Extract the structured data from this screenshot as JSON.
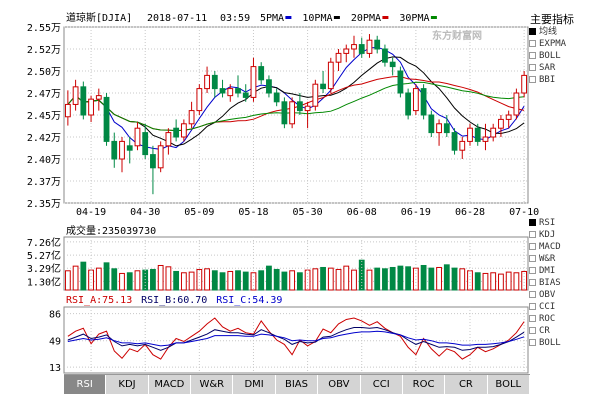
{
  "header": {
    "index_name": "道琼斯[DJIA]",
    "date": "2018-07-11",
    "time": "03:59",
    "ma_legend": [
      {
        "label": "5PMA",
        "color": "#0000cc"
      },
      {
        "label": "10PMA",
        "color": "#000000"
      },
      {
        "label": "20PMA",
        "color": "#cc0000"
      },
      {
        "label": "30PMA",
        "color": "#008800"
      }
    ]
  },
  "watermark": "东方财富网",
  "indicators_panel": {
    "title": "主要指标",
    "items": [
      {
        "label": "均线",
        "selected": true
      },
      {
        "label": "EXPMA",
        "selected": false
      },
      {
        "label": "BOLL",
        "selected": false
      },
      {
        "label": "SAR",
        "selected": false
      },
      {
        "label": "BBI",
        "selected": false
      }
    ]
  },
  "sub_indicators": {
    "items": [
      {
        "label": "RSI",
        "selected": true
      },
      {
        "label": "KDJ",
        "selected": false
      },
      {
        "label": "MACD",
        "selected": false
      },
      {
        "label": "W&R",
        "selected": false
      },
      {
        "label": "DMI",
        "selected": false
      },
      {
        "label": "BIAS",
        "selected": false
      },
      {
        "label": "OBV",
        "selected": false
      },
      {
        "label": "CCI",
        "selected": false
      },
      {
        "label": "ROC",
        "selected": false
      },
      {
        "label": "CR",
        "selected": false
      },
      {
        "label": "BOLL",
        "selected": false
      }
    ]
  },
  "tabs": {
    "items": [
      "RSI",
      "KDJ",
      "MACD",
      "W&R",
      "DMI",
      "BIAS",
      "OBV",
      "CCI",
      "ROC",
      "CR",
      "BOLL"
    ],
    "active": "RSI"
  },
  "colors": {
    "up": "#cc0000",
    "down": "#008844",
    "grid": "#c8c8c8",
    "axis_text": "#000000",
    "rsi_a": "#cc0000",
    "rsi_b": "#000066",
    "rsi_c": "#0000cc"
  },
  "chart_data": [
    {
      "type": "candlestick",
      "y_tick_labels": [
        "2.55万",
        "2.52万",
        "2.50万",
        "2.47万",
        "2.45万",
        "2.42万",
        "2.40万",
        "2.37万",
        "2.35万"
      ],
      "y_ticks": [
        25500,
        25250,
        25000,
        24750,
        24500,
        24250,
        24000,
        23750,
        23500
      ],
      "ylim": [
        23500,
        25500
      ],
      "x_tick_labels": [
        "04-19",
        "04-30",
        "05-09",
        "05-18",
        "05-30",
        "06-08",
        "06-19",
        "06-28",
        "07-10"
      ],
      "x_tick_index": [
        3,
        10,
        17,
        24,
        31,
        38,
        45,
        52,
        59
      ],
      "candles": [
        {
          "o": 24480,
          "h": 24780,
          "l": 24380,
          "c": 24620
        },
        {
          "o": 24620,
          "h": 24900,
          "l": 24550,
          "c": 24820
        },
        {
          "o": 24820,
          "h": 24880,
          "l": 24450,
          "c": 24500
        },
        {
          "o": 24500,
          "h": 24720,
          "l": 24420,
          "c": 24680
        },
        {
          "o": 24680,
          "h": 24800,
          "l": 24550,
          "c": 24720
        },
        {
          "o": 24700,
          "h": 24750,
          "l": 24150,
          "c": 24200
        },
        {
          "o": 24200,
          "h": 24300,
          "l": 23900,
          "c": 24000
        },
        {
          "o": 24000,
          "h": 24250,
          "l": 23850,
          "c": 24200
        },
        {
          "o": 24150,
          "h": 24250,
          "l": 23950,
          "c": 24100
        },
        {
          "o": 24150,
          "h": 24420,
          "l": 24100,
          "c": 24350
        },
        {
          "o": 24300,
          "h": 24400,
          "l": 24000,
          "c": 24050
        },
        {
          "o": 24050,
          "h": 24150,
          "l": 23600,
          "c": 23900
        },
        {
          "o": 23900,
          "h": 24200,
          "l": 23850,
          "c": 24150
        },
        {
          "o": 24150,
          "h": 24350,
          "l": 24050,
          "c": 24300
        },
        {
          "o": 24350,
          "h": 24450,
          "l": 24200,
          "c": 24250
        },
        {
          "o": 24250,
          "h": 24450,
          "l": 24200,
          "c": 24400
        },
        {
          "o": 24400,
          "h": 24650,
          "l": 24350,
          "c": 24550
        },
        {
          "o": 24550,
          "h": 24850,
          "l": 24500,
          "c": 24800
        },
        {
          "o": 24800,
          "h": 25050,
          "l": 24750,
          "c": 24950
        },
        {
          "o": 24950,
          "h": 25000,
          "l": 24700,
          "c": 24800
        },
        {
          "o": 24800,
          "h": 24900,
          "l": 24700,
          "c": 24750
        },
        {
          "o": 24720,
          "h": 24850,
          "l": 24650,
          "c": 24800
        },
        {
          "o": 24800,
          "h": 24950,
          "l": 24700,
          "c": 24750
        },
        {
          "o": 24750,
          "h": 24850,
          "l": 24650,
          "c": 24700
        },
        {
          "o": 24700,
          "h": 25150,
          "l": 24650,
          "c": 25050
        },
        {
          "o": 25050,
          "h": 25100,
          "l": 24850,
          "c": 24900
        },
        {
          "o": 24900,
          "h": 24950,
          "l": 24700,
          "c": 24750
        },
        {
          "o": 24750,
          "h": 24800,
          "l": 24600,
          "c": 24650
        },
        {
          "o": 24650,
          "h": 24700,
          "l": 24350,
          "c": 24400
        },
        {
          "o": 24400,
          "h": 24700,
          "l": 24350,
          "c": 24650
        },
        {
          "o": 24650,
          "h": 24750,
          "l": 24500,
          "c": 24550
        },
        {
          "o": 24550,
          "h": 24650,
          "l": 24350,
          "c": 24600
        },
        {
          "o": 24600,
          "h": 24900,
          "l": 24550,
          "c": 24850
        },
        {
          "o": 24850,
          "h": 25000,
          "l": 24750,
          "c": 24800
        },
        {
          "o": 24800,
          "h": 25150,
          "l": 24750,
          "c": 25100
        },
        {
          "o": 25100,
          "h": 25250,
          "l": 25000,
          "c": 25200
        },
        {
          "o": 25200,
          "h": 25300,
          "l": 25100,
          "c": 25250
        },
        {
          "o": 25250,
          "h": 25400,
          "l": 25150,
          "c": 25300
        },
        {
          "o": 25300,
          "h": 25380,
          "l": 25150,
          "c": 25200
        },
        {
          "o": 25200,
          "h": 25420,
          "l": 25150,
          "c": 25350
        },
        {
          "o": 25350,
          "h": 25400,
          "l": 25200,
          "c": 25250
        },
        {
          "o": 25250,
          "h": 25300,
          "l": 25050,
          "c": 25100
        },
        {
          "o": 25100,
          "h": 25150,
          "l": 24950,
          "c": 25050
        },
        {
          "o": 25000,
          "h": 25050,
          "l": 24700,
          "c": 24750
        },
        {
          "o": 24750,
          "h": 24800,
          "l": 24450,
          "c": 24500
        },
        {
          "o": 24550,
          "h": 24850,
          "l": 24500,
          "c": 24800
        },
        {
          "o": 24800,
          "h": 24850,
          "l": 24450,
          "c": 24500
        },
        {
          "o": 24500,
          "h": 24550,
          "l": 24250,
          "c": 24300
        },
        {
          "o": 24300,
          "h": 24450,
          "l": 24150,
          "c": 24400
        },
        {
          "o": 24400,
          "h": 24500,
          "l": 24250,
          "c": 24300
        },
        {
          "o": 24300,
          "h": 24350,
          "l": 24050,
          "c": 24100
        },
        {
          "o": 24100,
          "h": 24250,
          "l": 24000,
          "c": 24200
        },
        {
          "o": 24200,
          "h": 24400,
          "l": 24150,
          "c": 24350
        },
        {
          "o": 24350,
          "h": 24400,
          "l": 24150,
          "c": 24200
        },
        {
          "o": 24200,
          "h": 24400,
          "l": 24100,
          "c": 24250
        },
        {
          "o": 24250,
          "h": 24400,
          "l": 24200,
          "c": 24350
        },
        {
          "o": 24350,
          "h": 24500,
          "l": 24250,
          "c": 24450
        },
        {
          "o": 24450,
          "h": 24550,
          "l": 24350,
          "c": 24500
        },
        {
          "o": 24500,
          "h": 24800,
          "l": 24450,
          "c": 24750
        },
        {
          "o": 24750,
          "h": 25000,
          "l": 24700,
          "c": 24950
        }
      ]
    },
    {
      "type": "bar",
      "title": "成交量",
      "value_text": "235039730",
      "y_tick_labels": [
        "7.26亿",
        "5.27亿",
        "3.29亿",
        "1.30亿"
      ],
      "y_ticks": [
        7.26,
        5.27,
        3.29,
        1.3
      ],
      "ylim": [
        0,
        8.0
      ],
      "values": [
        2.9,
        3.6,
        4.2,
        3.0,
        3.3,
        4.1,
        3.2,
        2.5,
        2.6,
        2.9,
        3.0,
        3.1,
        3.7,
        3.5,
        2.8,
        2.6,
        2.7,
        3.1,
        3.2,
        2.9,
        2.6,
        2.8,
        2.9,
        2.7,
        2.6,
        2.9,
        3.6,
        3.1,
        2.7,
        2.9,
        2.6,
        3.0,
        3.2,
        3.4,
        3.3,
        3.1,
        3.6,
        3.0,
        4.5,
        3.0,
        3.3,
        3.2,
        3.4,
        3.6,
        3.5,
        3.3,
        3.7,
        3.3,
        3.4,
        3.8,
        3.3,
        3.2,
        2.9,
        2.6,
        2.5,
        2.6,
        2.4,
        2.7,
        2.6,
        2.8
      ]
    },
    {
      "type": "line",
      "title": "RSI",
      "y_tick_labels": [
        "86",
        "49",
        "13"
      ],
      "y_ticks": [
        86,
        49,
        13
      ],
      "ylim": [
        5,
        95
      ],
      "series": [
        {
          "name": "RSI_A",
          "last": "75.13",
          "color": "#cc0000",
          "values": [
            55,
            62,
            66,
            45,
            58,
            62,
            35,
            25,
            38,
            34,
            44,
            30,
            24,
            40,
            52,
            48,
            55,
            62,
            72,
            80,
            68,
            62,
            66,
            60,
            58,
            76,
            62,
            50,
            44,
            30,
            50,
            42,
            48,
            65,
            60,
            72,
            78,
            80,
            76,
            70,
            75,
            66,
            60,
            55,
            40,
            30,
            52,
            38,
            28,
            38,
            34,
            24,
            30,
            40,
            34,
            38,
            44,
            50,
            60,
            75.13
          ]
        },
        {
          "name": "RSI_B",
          "last": "60.70",
          "color": "#000066",
          "values": [
            50,
            54,
            58,
            52,
            54,
            57,
            48,
            42,
            44,
            42,
            44,
            40,
            36,
            40,
            46,
            46,
            50,
            54,
            58,
            64,
            62,
            60,
            60,
            58,
            57,
            64,
            60,
            55,
            51,
            44,
            48,
            46,
            47,
            54,
            55,
            60,
            64,
            67,
            67,
            66,
            67,
            64,
            60,
            57,
            50,
            44,
            48,
            44,
            40,
            41,
            40,
            36,
            37,
            40,
            40,
            41,
            44,
            48,
            54,
            60.7
          ]
        },
        {
          "name": "RSI_C",
          "last": "54.39",
          "color": "#0000cc",
          "values": [
            48,
            50,
            52,
            50,
            51,
            53,
            49,
            46,
            46,
            45,
            46,
            44,
            42,
            43,
            46,
            46,
            48,
            50,
            52,
            56,
            56,
            56,
            56,
            55,
            55,
            58,
            57,
            55,
            53,
            49,
            50,
            49,
            49,
            52,
            53,
            56,
            58,
            60,
            61,
            61,
            62,
            61,
            59,
            57,
            53,
            50,
            51,
            49,
            46,
            46,
            45,
            43,
            43,
            44,
            44,
            45,
            46,
            48,
            51,
            54.39
          ]
        }
      ]
    }
  ]
}
